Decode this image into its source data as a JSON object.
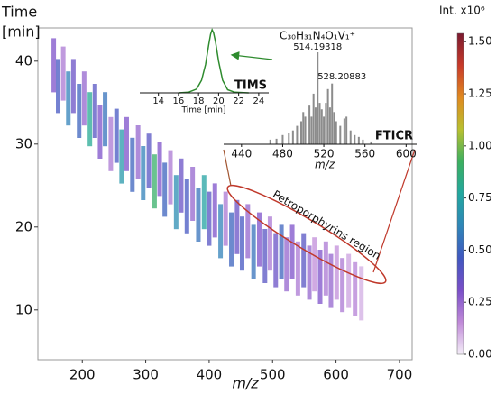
{
  "chart_data": [
    {
      "type": "scatter",
      "xlabel": "m/z",
      "ylabel": [
        "Time",
        "[min]"
      ],
      "xlim": [
        130,
        720
      ],
      "xticks": [
        200,
        300,
        400,
        500,
        600,
        700
      ],
      "ylim": [
        4,
        44
      ],
      "yticks": [
        10,
        20,
        30,
        40
      ],
      "x": [
        155,
        162,
        170,
        178,
        186,
        195,
        203,
        212,
        220,
        228,
        236,
        245,
        254,
        262,
        270,
        279,
        288,
        296,
        305,
        314,
        322,
        330,
        339,
        348,
        356,
        365,
        374,
        383,
        392,
        400,
        409,
        418,
        426,
        435,
        444,
        452,
        461,
        470,
        479,
        488,
        496,
        505,
        514,
        522,
        531,
        540,
        549,
        558,
        566,
        575,
        584,
        592,
        601,
        610,
        620,
        630,
        640
      ],
      "y": [
        39.5,
        37,
        38.5,
        35.5,
        37,
        34,
        35.5,
        33,
        34,
        31.5,
        33,
        30,
        31,
        28.5,
        30,
        27.5,
        29,
        26.5,
        28,
        25.5,
        27,
        24.5,
        26,
        23,
        25,
        22.5,
        24,
        21.5,
        23,
        21,
        22,
        19.5,
        21,
        18.5,
        20,
        18,
        19.5,
        17,
        18.5,
        16.5,
        18,
        16,
        17,
        15.5,
        17,
        15,
        16,
        14.5,
        15.5,
        14,
        15,
        13.5,
        14.5,
        13,
        13.5,
        12.5,
        12
      ],
      "intensity": [
        0.3,
        0.45,
        0.2,
        0.6,
        0.35,
        0.5,
        0.25,
        0.8,
        0.4,
        0.3,
        0.55,
        0.2,
        0.45,
        0.7,
        0.3,
        0.5,
        0.25,
        0.6,
        0.4,
        0.9,
        0.3,
        0.5,
        0.2,
        0.65,
        0.35,
        0.45,
        0.25,
        0.55,
        0.75,
        0.4,
        0.3,
        0.6,
        0.2,
        0.5,
        0.35,
        0.45,
        0.25,
        0.55,
        0.3,
        0.4,
        0.2,
        0.35,
        0.5,
        0.25,
        0.3,
        0.2,
        0.4,
        0.25,
        0.15,
        0.3,
        0.2,
        0.25,
        0.15,
        0.2,
        0.12,
        0.18,
        0.1
      ],
      "clim": [
        0,
        1.54
      ],
      "colorbar_label": "Int. x10⁶",
      "colorbar_ticks": [
        {
          "value": 0,
          "label": "0.00"
        },
        0.25,
        {
          "value": 0.5,
          "label": "0.50"
        },
        0.75,
        {
          "value": 1,
          "label": "1.00"
        },
        1.25,
        {
          "value": 1.5,
          "label": "1.50"
        }
      ],
      "colormap": [
        "#f4eef8",
        "#c08ad8",
        "#7a4fc8",
        "#4058c0",
        "#2f86b8",
        "#22a7a0",
        "#3cb060",
        "#b8c030",
        "#e08a20",
        "#c83a2a",
        "#7a1a30"
      ],
      "annotations": [
        {
          "text": "Petroporphyrins region",
          "color": "#c0392b"
        }
      ]
    },
    {
      "type": "line",
      "title": "TIMS",
      "xlabel": "Time [min]",
      "xlim": [
        12.5,
        25
      ],
      "xticks": [
        14,
        16,
        18,
        20,
        22,
        24
      ],
      "ylim": [
        0,
        1
      ],
      "x": [
        16,
        17,
        17.8,
        18.3,
        18.7,
        19,
        19.2,
        19.35,
        19.5,
        19.7,
        20,
        20.4,
        20.9,
        21.6,
        23
      ],
      "values": [
        0,
        0.01,
        0.06,
        0.2,
        0.45,
        0.75,
        0.93,
        1,
        0.95,
        0.8,
        0.5,
        0.2,
        0.05,
        0.01,
        0
      ],
      "color": "#2e8b2e"
    },
    {
      "type": "bar",
      "title": "FTICR",
      "xlabel": "m/z",
      "formula": "C₃₀H₃₁N₄O₁V₁⁺",
      "xlim": [
        427,
        612
      ],
      "xticks": [
        440,
        480,
        520,
        560,
        600
      ],
      "ylim": [
        0,
        100
      ],
      "x": [
        468,
        474,
        480,
        486,
        490,
        494,
        498,
        500,
        502,
        506,
        508,
        510,
        512,
        514,
        516,
        518,
        520,
        522,
        524,
        526,
        528,
        530,
        532,
        536,
        540,
        542,
        546,
        550,
        554,
        558,
        566
      ],
      "values": [
        5,
        6,
        10,
        12,
        15,
        20,
        25,
        35,
        30,
        42,
        30,
        55,
        40,
        100,
        45,
        38,
        30,
        45,
        60,
        40,
        66,
        35,
        25,
        20,
        28,
        30,
        15,
        10,
        8,
        5,
        3
      ],
      "color": "#8c8c8c",
      "peak_labels": [
        {
          "text": "514.19318",
          "x": 514
        },
        {
          "text": "528.20883",
          "x": 528
        }
      ]
    }
  ]
}
